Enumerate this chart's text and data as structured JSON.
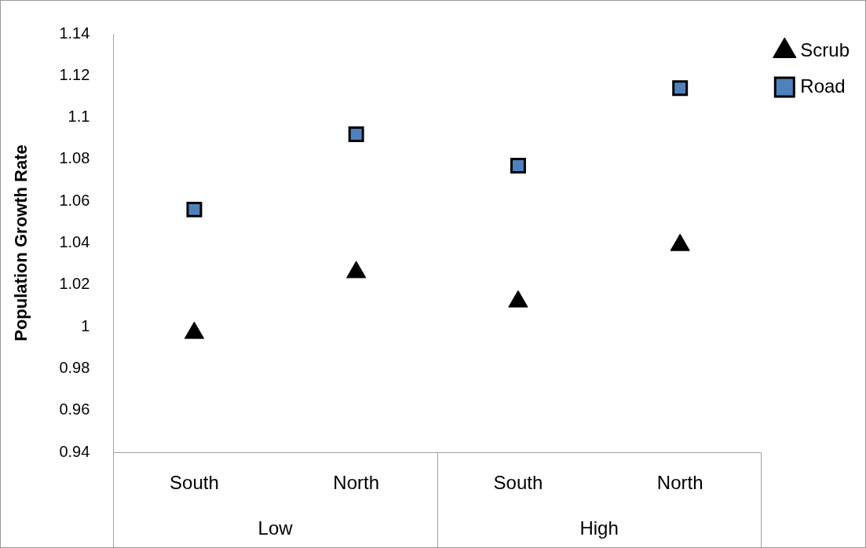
{
  "chart_data": {
    "type": "scatter",
    "ylabel": "Population Growth Rate",
    "categories": [
      "South",
      "North",
      "South",
      "North"
    ],
    "annotations": [
      "Low",
      "High"
    ],
    "series": [
      {
        "name": "Scrub",
        "color": "#000000",
        "marker": "triangle",
        "values": [
          0.997,
          1.026,
          1.012,
          1.039
        ]
      },
      {
        "name": "Road",
        "color": "#4f81bd",
        "marker": "square",
        "values": [
          1.056,
          1.092,
          1.077,
          1.114
        ]
      }
    ],
    "ylim": [
      0.94,
      1.14
    ],
    "yticks": [
      0.94,
      0.96,
      0.98,
      1,
      1.02,
      1.04,
      1.06,
      1.08,
      1.1,
      1.12,
      1.14
    ],
    "grid": false,
    "legend": "top right"
  }
}
